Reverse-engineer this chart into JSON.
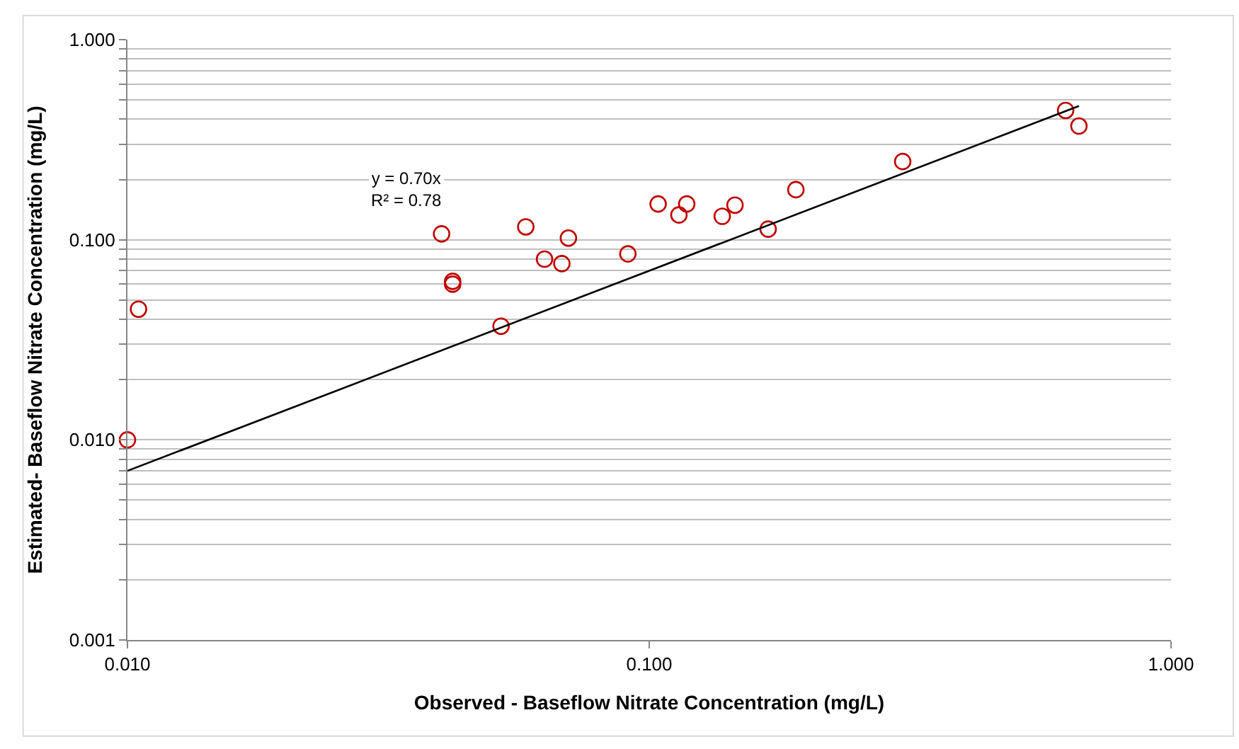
{
  "chart_data": {
    "type": "scatter",
    "log": "xy",
    "grid": "y",
    "xlabel": "Observed - Baseflow Nitrate Concentration (mg/L)",
    "ylabel": "Estimated- Baseflow Nitrate Concentration (mg/L)",
    "xlim": [
      0.01,
      1.0
    ],
    "xticks": [
      {
        "value": 0.01,
        "label": "0.010"
      },
      {
        "value": 0.1,
        "label": "0.100"
      },
      {
        "value": 1.0,
        "label": "1.000"
      }
    ],
    "ylim": [
      0.001,
      1.0
    ],
    "yticks": [
      {
        "value": 0.001,
        "label": "0.001"
      },
      {
        "value": 0.002,
        "label": null
      },
      {
        "value": 0.003,
        "label": null
      },
      {
        "value": 0.004,
        "label": null
      },
      {
        "value": 0.005,
        "label": null
      },
      {
        "value": 0.006,
        "label": null
      },
      {
        "value": 0.007,
        "label": null
      },
      {
        "value": 0.008,
        "label": null
      },
      {
        "value": 0.009,
        "label": null
      },
      {
        "value": 0.01,
        "label": "0.010"
      },
      {
        "value": 0.02,
        "label": null
      },
      {
        "value": 0.03,
        "label": null
      },
      {
        "value": 0.04,
        "label": null
      },
      {
        "value": 0.05,
        "label": null
      },
      {
        "value": 0.06,
        "label": null
      },
      {
        "value": 0.07,
        "label": null
      },
      {
        "value": 0.08,
        "label": null
      },
      {
        "value": 0.09,
        "label": null
      },
      {
        "value": 0.1,
        "label": "0.100"
      },
      {
        "value": 0.2,
        "label": null
      },
      {
        "value": 0.3,
        "label": null
      },
      {
        "value": 0.4,
        "label": null
      },
      {
        "value": 0.5,
        "label": null
      },
      {
        "value": 0.6,
        "label": null
      },
      {
        "value": 0.7,
        "label": null
      },
      {
        "value": 0.8,
        "label": null
      },
      {
        "value": 0.9,
        "label": null
      },
      {
        "value": 1.0,
        "label": "1.000"
      }
    ],
    "annotations": [
      "y = 0.70x\nR² = 0.78"
    ],
    "series": [
      {
        "marker": "circle",
        "color": "#c00000",
        "x": [
          0.01,
          0.0105,
          0.04,
          0.042,
          0.042,
          0.052,
          0.058,
          0.063,
          0.068,
          0.07,
          0.091,
          0.104,
          0.114,
          0.118,
          0.138,
          0.146,
          0.169,
          0.191,
          0.306,
          0.628,
          0.666
        ],
        "values": [
          0.01,
          0.045,
          0.107,
          0.062,
          0.06,
          0.037,
          0.116,
          0.08,
          0.076,
          0.102,
          0.085,
          0.151,
          0.133,
          0.151,
          0.131,
          0.149,
          0.113,
          0.178,
          0.246,
          0.443,
          0.37
        ]
      },
      {
        "type": "line",
        "color": "#000000",
        "x": [
          0.01,
          0.666
        ],
        "values": [
          0.007,
          0.466
        ]
      }
    ]
  }
}
